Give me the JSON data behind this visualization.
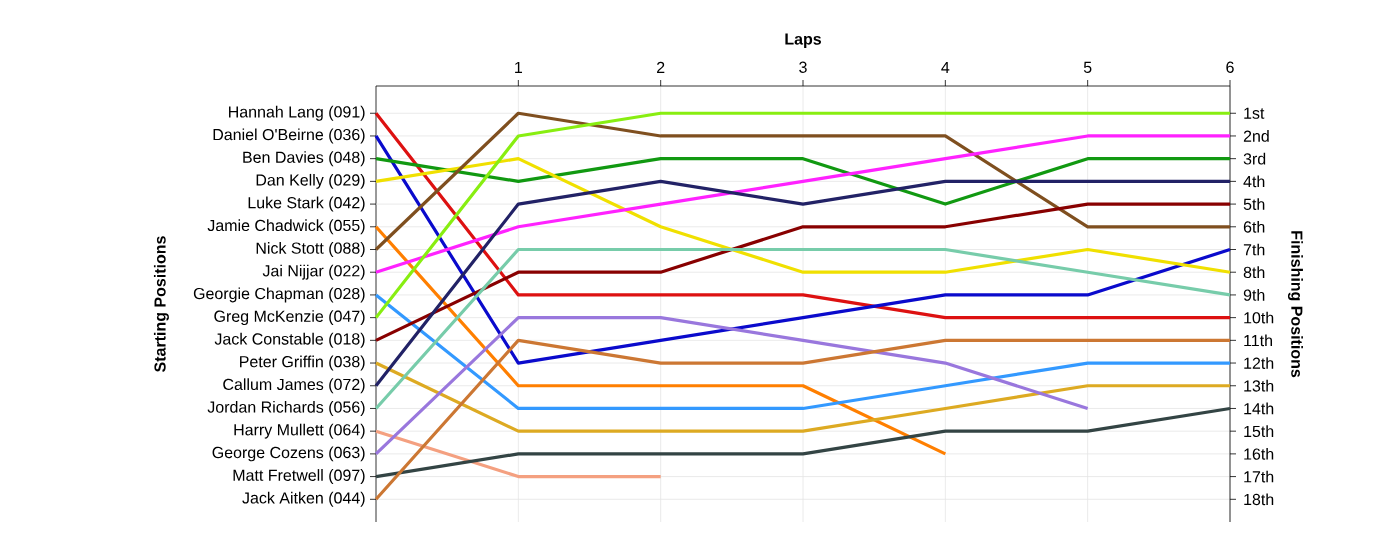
{
  "chart_data": {
    "type": "line",
    "xlabel": "Laps",
    "y2label": "Finishing Positions",
    "x": [
      0,
      1,
      2,
      3,
      4,
      5,
      6
    ],
    "xlim": [
      0,
      6
    ],
    "xticks": [
      1,
      2,
      3,
      4,
      5,
      6
    ],
    "y2lim": [
      19,
      -0.2
    ],
    "annotations": [
      "Luke Stark (042)",
      "Starting Positions"
    ],
    "y2ticks": [
      {
        "value": 1,
        "label": "1st"
      },
      {
        "value": 2,
        "label": "2nd"
      },
      {
        "value": 3,
        "label": "3rd"
      },
      {
        "value": 4,
        "label": "4th"
      },
      {
        "value": 5,
        "label": "5th"
      },
      {
        "value": 6,
        "label": "6th"
      },
      {
        "value": 7,
        "label": "7th"
      },
      {
        "value": 8,
        "label": "8th"
      },
      {
        "value": 9,
        "label": "9th"
      },
      {
        "value": 10,
        "label": "10th"
      },
      {
        "value": 11,
        "label": "11th"
      },
      {
        "value": 12,
        "label": "12th"
      },
      {
        "value": 13,
        "label": "13th"
      },
      {
        "value": 14,
        "label": "14th"
      },
      {
        "value": 15,
        "label": "15th"
      },
      {
        "value": 16,
        "label": "16th"
      },
      {
        "value": 17,
        "label": "17th"
      },
      {
        "value": 18,
        "label": "18th"
      }
    ],
    "grid": true,
    "series": [
      {
        "name": "Hannah Lang (091)",
        "axis": "y2",
        "color": "#dd1111",
        "values": [
          1,
          9,
          9,
          9,
          10,
          10,
          10
        ]
      },
      {
        "name": "Daniel O'Beirne (036)",
        "axis": "y2",
        "color": "#0a0acc",
        "values": [
          2,
          12,
          11,
          10,
          9,
          9,
          7
        ]
      },
      {
        "name": "Ben Davies (048)",
        "axis": "y2",
        "color": "#119911",
        "values": [
          3,
          4,
          3,
          3,
          5,
          3,
          3
        ]
      },
      {
        "name": "Dan Kelly (029)",
        "axis": "y2",
        "color": "#f0e000",
        "values": [
          4,
          3,
          6,
          8,
          8,
          7,
          8
        ]
      },
      {
        "name": "Jamie Chadwick (055)",
        "axis": "y2",
        "color": "#ff7f00",
        "values": [
          6,
          13,
          13,
          13,
          16,
          null,
          null
        ]
      },
      {
        "name": "Nick Stott (088)",
        "axis": "y2",
        "color": "#7f4f1f",
        "values": [
          7,
          1,
          2,
          2,
          2,
          6,
          6
        ]
      },
      {
        "name": "Jai Nijjar (022)",
        "axis": "y2",
        "color": "#ff22ff",
        "values": [
          8,
          6,
          5,
          4,
          3,
          2,
          2
        ]
      },
      {
        "name": "Georgie Chapman (028)",
        "axis": "y2",
        "color": "#3399ff",
        "values": [
          9,
          14,
          14,
          14,
          13,
          12,
          12
        ]
      },
      {
        "name": "Greg McKenzie (047)",
        "axis": "y2",
        "color": "#88ee11",
        "values": [
          10,
          2,
          1,
          1,
          1,
          1,
          1
        ]
      },
      {
        "name": "Jack Constable (018)",
        "axis": "y2",
        "color": "#880000",
        "values": [
          11,
          8,
          8,
          6,
          6,
          5,
          5
        ]
      },
      {
        "name": "Peter Griffin (038)",
        "axis": "y2",
        "color": "#ddaa22",
        "values": [
          12,
          15,
          15,
          15,
          14,
          13,
          13
        ]
      },
      {
        "name": "Callum James (072)",
        "axis": "y2",
        "color": "#222266",
        "values": [
          13,
          5,
          4,
          5,
          4,
          4,
          4
        ]
      },
      {
        "name": "Jordan Richards (056)",
        "axis": "y2",
        "color": "#77ccaa",
        "values": [
          14,
          7,
          7,
          7,
          7,
          8,
          9
        ]
      },
      {
        "name": "Harry Mullett (064)",
        "axis": "y2",
        "color": "#f4a080",
        "values": [
          15,
          17,
          17,
          null,
          null,
          null,
          null
        ]
      },
      {
        "name": "George Cozens (063)",
        "axis": "y2",
        "color": "#9977dd",
        "values": [
          16,
          10,
          10,
          11,
          12,
          14,
          null
        ]
      },
      {
        "name": "Matt Fretwell (097)",
        "axis": "y2",
        "color": "#334444",
        "values": [
          17,
          16,
          16,
          16,
          15,
          15,
          14
        ]
      },
      {
        "name": "Jack Aitken (044)",
        "axis": "y2",
        "color": "#cc7733",
        "values": [
          18,
          11,
          12,
          12,
          11,
          11,
          11
        ]
      }
    ]
  }
}
